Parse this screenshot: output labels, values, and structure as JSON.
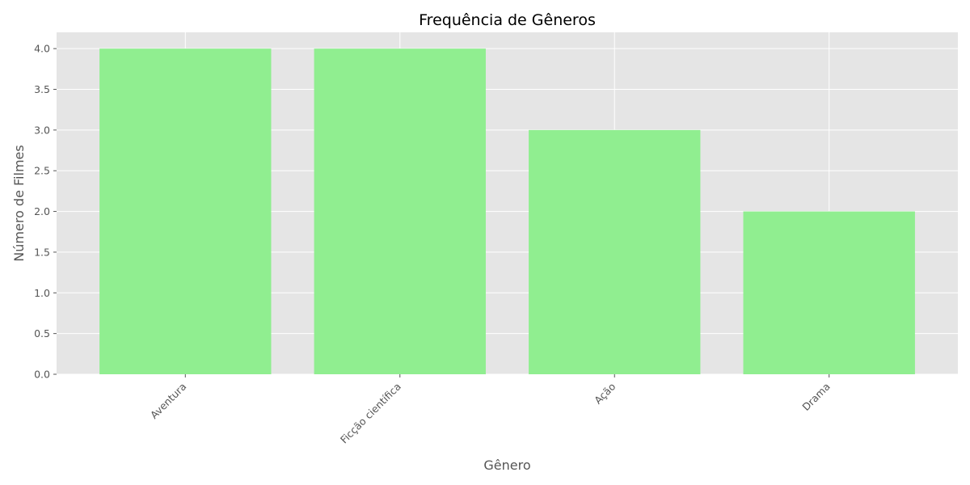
{
  "chart_data": {
    "type": "bar",
    "title": "Frequência de Gêneros",
    "xlabel": "Gênero",
    "ylabel": "Número de Filmes",
    "categories": [
      "Aventura",
      "Ficção científica",
      "Ação",
      "Drama"
    ],
    "values": [
      4,
      4,
      3,
      2
    ],
    "ylim": [
      0,
      4.2
    ],
    "yticks": [
      "0.0",
      "0.5",
      "1.0",
      "1.5",
      "2.0",
      "2.5",
      "3.0",
      "3.5",
      "4.0"
    ],
    "ytick_values": [
      0,
      0.5,
      1,
      1.5,
      2,
      2.5,
      3,
      3.5,
      4
    ],
    "grid": true,
    "colors": {
      "bar": "#90ee90",
      "plot_background": "#e5e5e5",
      "grid": "#ffffff"
    }
  }
}
